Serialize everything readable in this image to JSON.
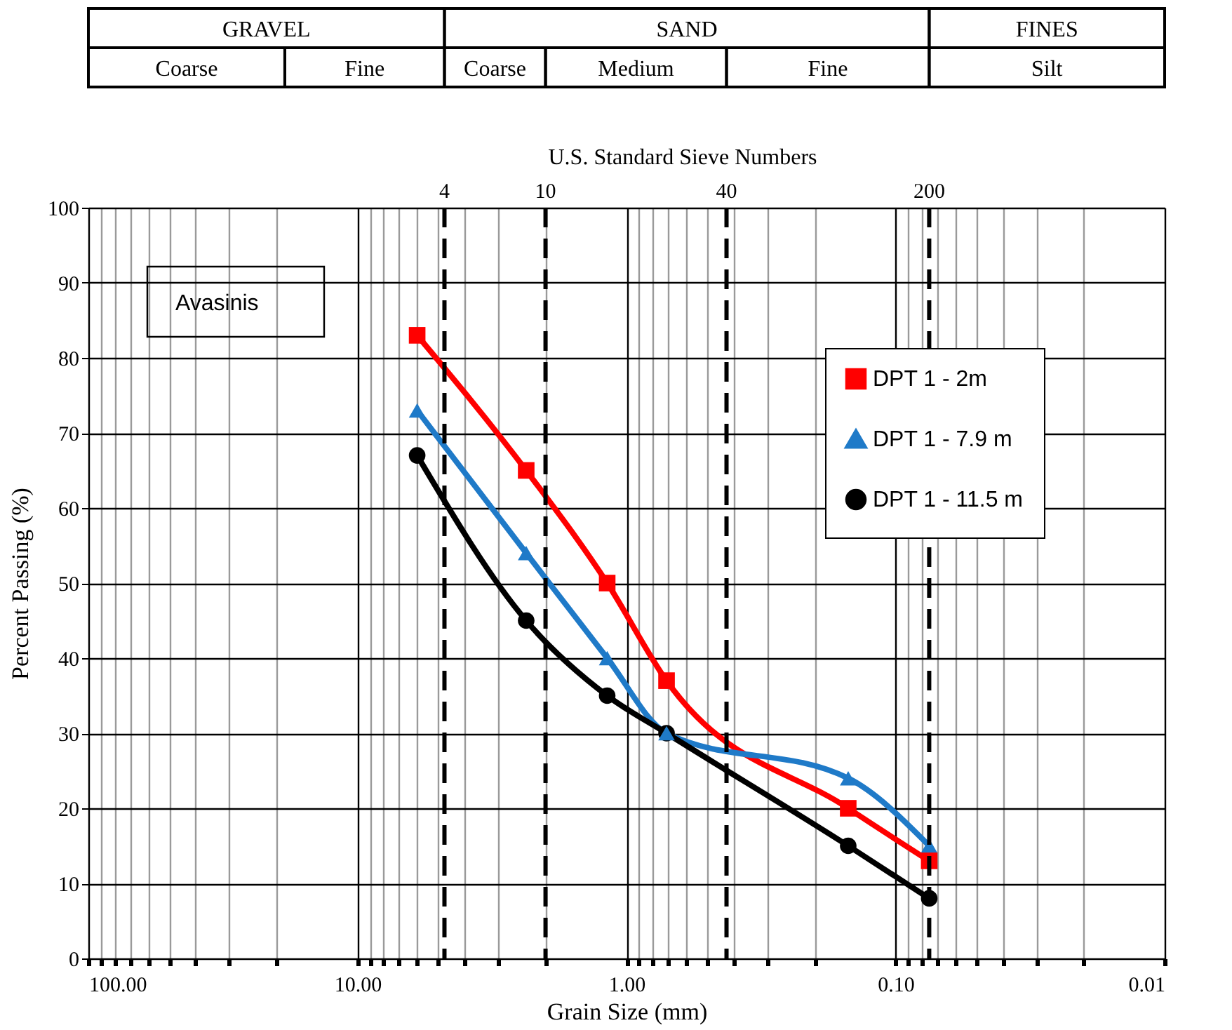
{
  "chart_data": {
    "type": "line",
    "xlabel": "Grain Size (mm)",
    "ylabel": "Percent Passing (%)",
    "log": "x",
    "grid": true,
    "legend": "right",
    "line_style": "solid",
    "xlim": [
      100,
      0.01
    ],
    "ylim": [
      0,
      100
    ],
    "xticks": [
      {
        "value": 100,
        "label": "100.00"
      },
      {
        "value": 90,
        "label": null
      },
      {
        "value": 80,
        "label": null
      },
      {
        "value": 70,
        "label": null
      },
      {
        "value": 60,
        "label": null
      },
      {
        "value": 50,
        "label": null
      },
      {
        "value": 40,
        "label": null
      },
      {
        "value": 30,
        "label": null
      },
      {
        "value": 20,
        "label": null
      },
      {
        "value": 10,
        "label": "10.00"
      },
      {
        "value": 9,
        "label": null
      },
      {
        "value": 8,
        "label": null
      },
      {
        "value": 7,
        "label": null
      },
      {
        "value": 6,
        "label": null
      },
      {
        "value": 5,
        "label": null
      },
      {
        "value": 4,
        "label": null
      },
      {
        "value": 3,
        "label": null
      },
      {
        "value": 2,
        "label": null
      },
      {
        "value": 1,
        "label": "1.00"
      },
      {
        "value": 0.9,
        "label": null
      },
      {
        "value": 0.8,
        "label": null
      },
      {
        "value": 0.7,
        "label": null
      },
      {
        "value": 0.6,
        "label": null
      },
      {
        "value": 0.5,
        "label": null
      },
      {
        "value": 0.4,
        "label": null
      },
      {
        "value": 0.3,
        "label": null
      },
      {
        "value": 0.2,
        "label": null
      },
      {
        "value": 0.1,
        "label": "0.10"
      },
      {
        "value": 0.09,
        "label": null
      },
      {
        "value": 0.08,
        "label": null
      },
      {
        "value": 0.07,
        "label": null
      },
      {
        "value": 0.06,
        "label": null
      },
      {
        "value": 0.05,
        "label": null
      },
      {
        "value": 0.04,
        "label": null
      },
      {
        "value": 0.03,
        "label": null
      },
      {
        "value": 0.02,
        "label": null
      },
      0.01
    ],
    "yticks": [
      0,
      10,
      20,
      30,
      40,
      50,
      60,
      70,
      80,
      90,
      100
    ],
    "x": [
      6.0,
      2.36,
      1.18,
      0.71,
      0.15,
      0.075
    ],
    "series": [
      {
        "name": "DPT 1 - 2m",
        "color": "#ff0000",
        "marker": "square",
        "values": [
          83,
          65,
          50,
          37,
          20,
          13
        ]
      },
      {
        "name": "DPT 1 - 7.9 m",
        "color": "#1f7ac8",
        "marker": "triangle",
        "values": [
          73,
          54,
          40,
          30,
          24,
          15
        ]
      },
      {
        "name": "DPT 1 - 11.5 m",
        "color": "#000000",
        "marker": "circle",
        "values": [
          67,
          45,
          35,
          30,
          15,
          8
        ]
      }
    ],
    "ref_lines": [
      {
        "axis": "x",
        "value": 4.75,
        "color": "#000000",
        "line_style": "dashed"
      },
      {
        "axis": "x",
        "value": 2.0,
        "color": "#000000",
        "line_style": "dashed"
      },
      {
        "axis": "x",
        "value": 0.425,
        "color": "#000000",
        "line_style": "dashed"
      },
      {
        "axis": "x",
        "value": 0.075,
        "color": "#000000",
        "line_style": "dashed"
      }
    ],
    "annotations": [
      "Avasinis",
      "GRAVEL",
      "SAND",
      "FINES",
      "Coarse",
      "Fine",
      "Coarse",
      "Medium",
      "Fine",
      "Silt",
      "U.S. Standard Sieve Numbers",
      {
        "text": "4",
        "x": 4.75,
        "y": 100
      },
      {
        "text": "10",
        "x": 2.0,
        "y": 100
      },
      {
        "text": "40",
        "x": 0.425,
        "y": 100
      },
      {
        "text": "200",
        "x": 0.075,
        "y": 100
      }
    ]
  }
}
